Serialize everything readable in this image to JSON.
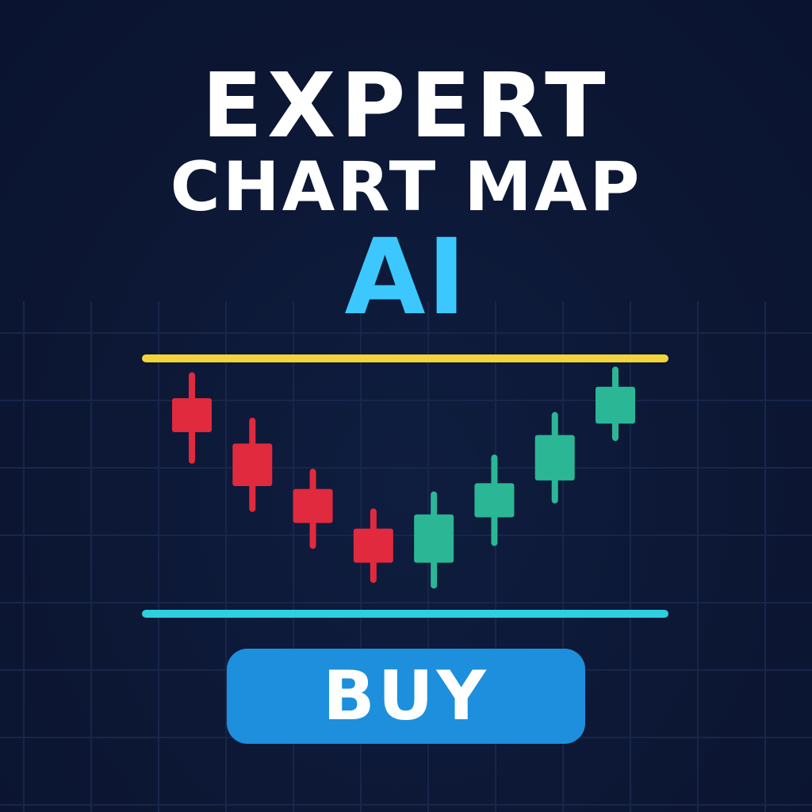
{
  "title": {
    "line1": "EXPERT",
    "line2": "CHART MAP",
    "line3": "AI"
  },
  "buy_button": {
    "label": "BUY"
  },
  "colors": {
    "background": "#0c1734",
    "grid": "#17264a",
    "title": "#ffffff",
    "accent": "#3cc8ff",
    "resistance_line": "#f2d43a",
    "support_line": "#2ecfe0",
    "bearish": "#e12a3e",
    "bullish": "#2bb795",
    "button": "#1d8fdd"
  },
  "candles": [
    {
      "direction": "down",
      "open": 8.6,
      "close": 7.4,
      "high": 9.4,
      "low": 6.4
    },
    {
      "direction": "down",
      "open": 7.0,
      "close": 5.5,
      "high": 7.8,
      "low": 4.7
    },
    {
      "direction": "down",
      "open": 5.4,
      "close": 4.2,
      "high": 6.0,
      "low": 3.4
    },
    {
      "direction": "down",
      "open": 4.0,
      "close": 2.8,
      "high": 4.6,
      "low": 2.2
    },
    {
      "direction": "up",
      "open": 2.8,
      "close": 4.5,
      "high": 5.2,
      "low": 2.0
    },
    {
      "direction": "up",
      "open": 4.4,
      "close": 5.6,
      "high": 6.5,
      "low": 3.5
    },
    {
      "direction": "up",
      "open": 5.7,
      "close": 7.3,
      "high": 8.0,
      "low": 5.0
    },
    {
      "direction": "up",
      "open": 7.7,
      "close": 9.0,
      "high": 9.6,
      "low": 7.2
    }
  ],
  "levels": {
    "resistance": 10.0,
    "support": 1.0
  }
}
